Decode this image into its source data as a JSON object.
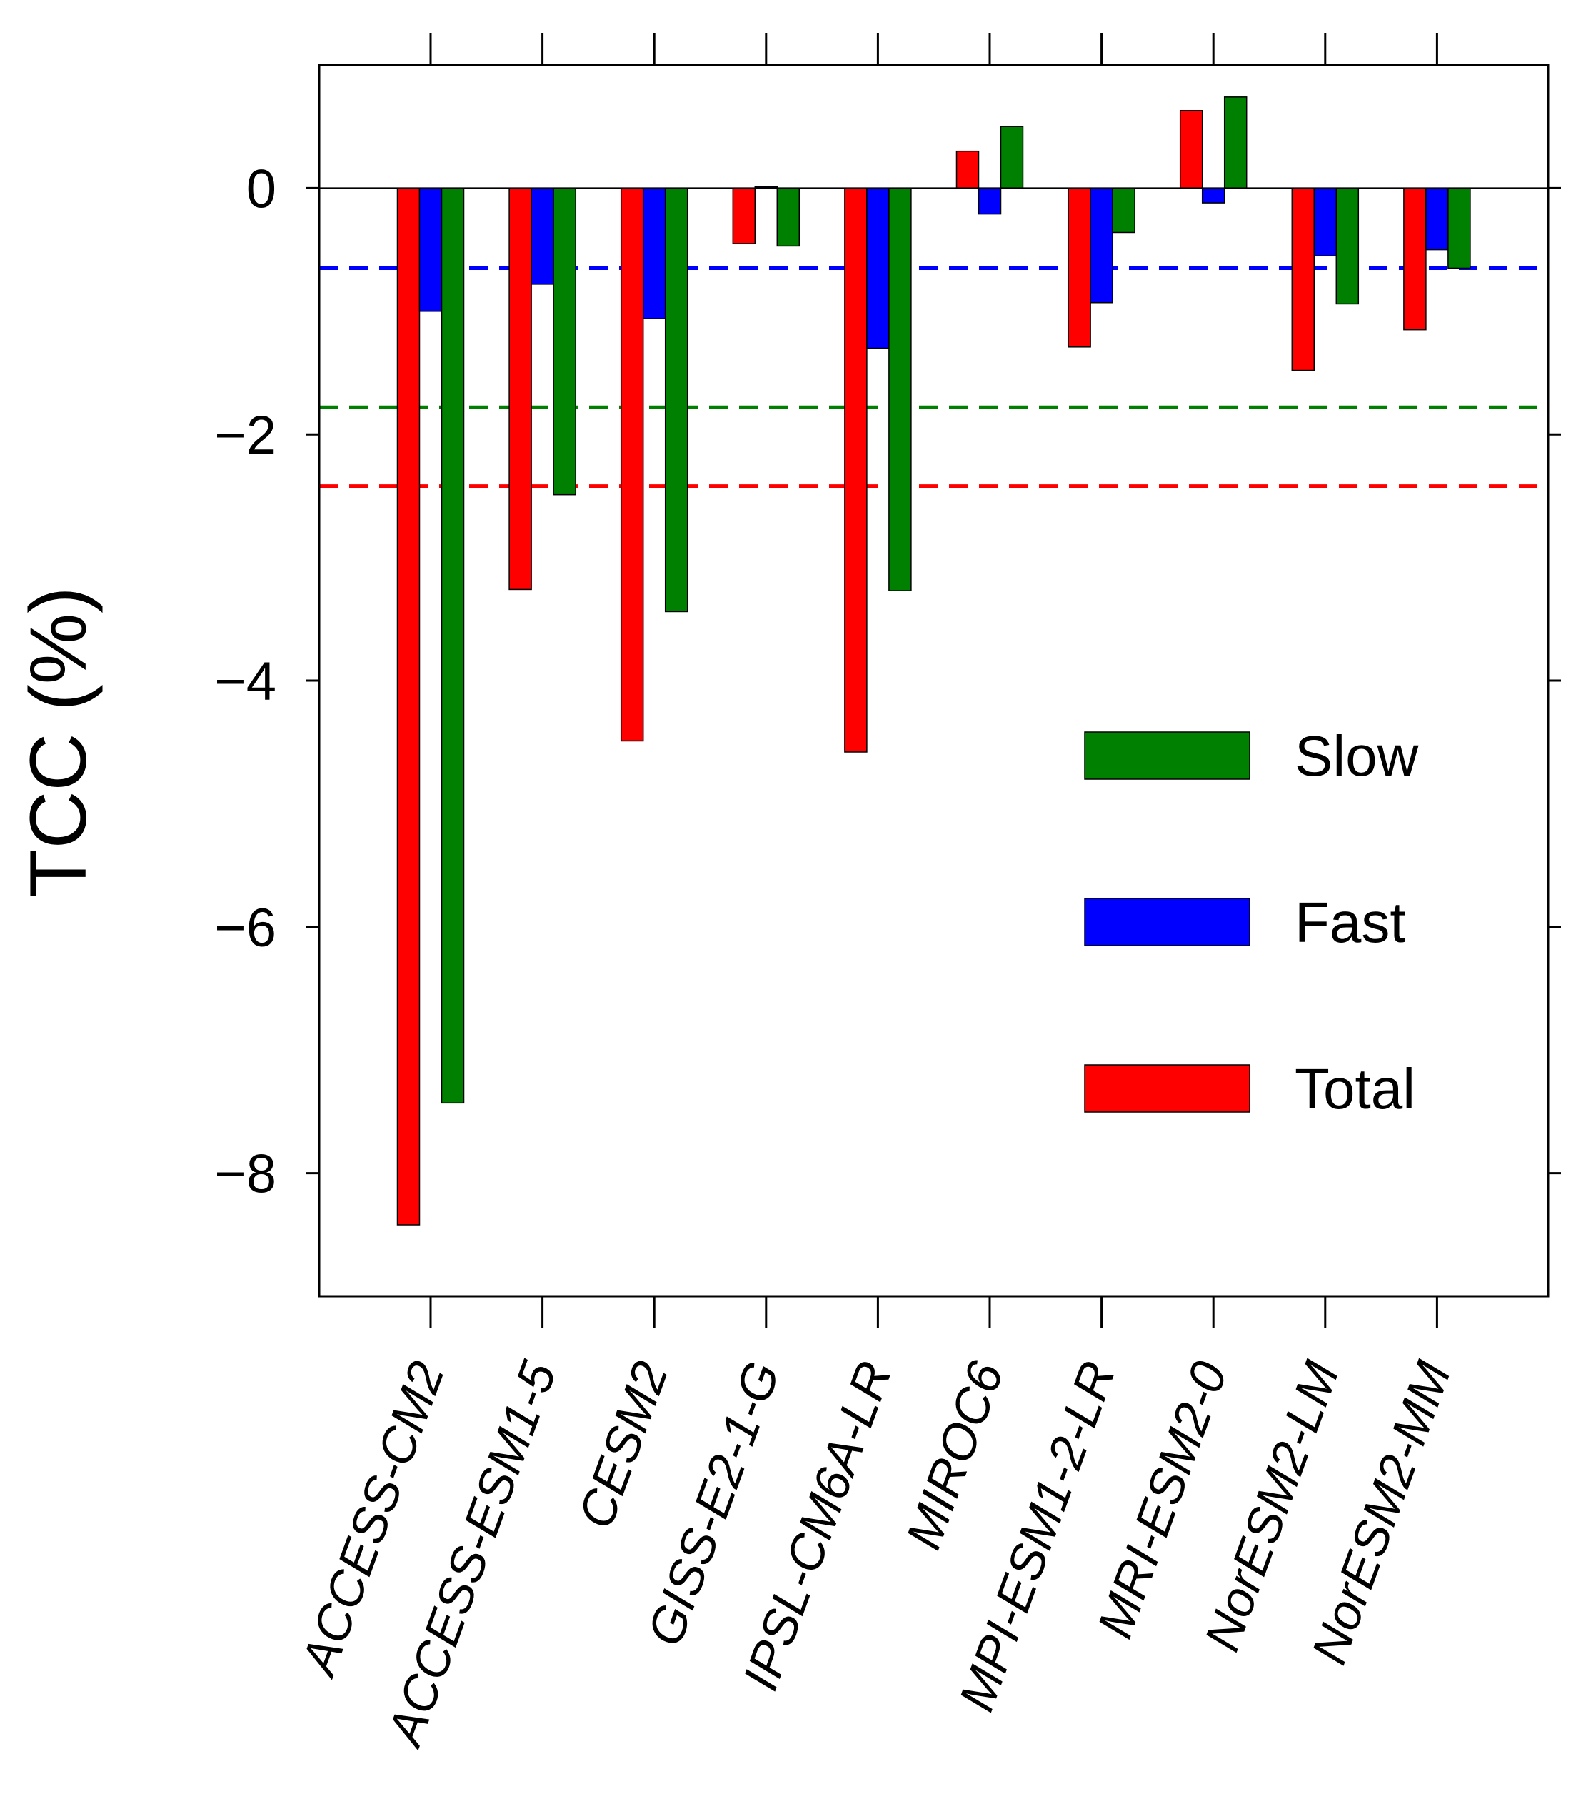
{
  "chart_data": {
    "type": "bar",
    "title": "",
    "xlabel": "",
    "ylabel": "TCC (%)",
    "ylim": [
      -9,
      1
    ],
    "yticks": [
      0,
      -2,
      -4,
      -6,
      -8
    ],
    "ytick_labels": [
      "0",
      "−2",
      "−4",
      "−6",
      "−8"
    ],
    "grid": false,
    "legend_position": "right-middle",
    "categories": [
      "ACCESS-CM2",
      "ACCESS-ESM1-5",
      "CESM2",
      "GISS-E2-1-G",
      "IPSL-CM6A-LR",
      "MIROC6",
      "MPI-ESM1-2-LR",
      "MRI-ESM2-0",
      "NorESM2-LM",
      "NorESM2-MM"
    ],
    "series": [
      {
        "name": "Total",
        "color": "#ff0000",
        "values": [
          -8.42,
          -3.26,
          -4.49,
          -0.45,
          -4.58,
          0.3,
          -1.29,
          0.63,
          -1.48,
          -1.15
        ]
      },
      {
        "name": "Fast",
        "color": "#0000ff",
        "values": [
          -1.0,
          -0.78,
          -1.06,
          0.01,
          -1.3,
          -0.21,
          -0.93,
          -0.12,
          -0.55,
          -0.5
        ]
      },
      {
        "name": "Slow",
        "color": "#008000",
        "values": [
          -7.43,
          -2.49,
          -3.44,
          -0.47,
          -3.27,
          0.5,
          -0.36,
          0.74,
          -0.94,
          -0.65
        ]
      }
    ],
    "reference_lines": [
      {
        "series": "Fast",
        "value": -0.65,
        "color": "#0000ff",
        "style": "dashed"
      },
      {
        "series": "Slow",
        "value": -1.78,
        "color": "#008000",
        "style": "dashed"
      },
      {
        "series": "Total",
        "value": -2.42,
        "color": "#ff0000",
        "style": "dashed"
      }
    ],
    "legend": [
      {
        "label": "Slow",
        "color": "#008000"
      },
      {
        "label": "Fast",
        "color": "#0000ff"
      },
      {
        "label": "Total",
        "color": "#ff0000"
      }
    ]
  }
}
